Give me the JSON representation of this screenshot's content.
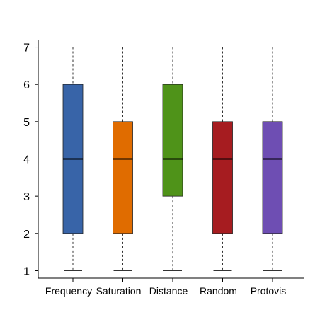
{
  "chart_data": {
    "type": "box",
    "title": "",
    "xlabel": "",
    "ylabel": "",
    "ylim": [
      0.8,
      7.2
    ],
    "yticks": [
      1,
      2,
      3,
      4,
      5,
      6,
      7
    ],
    "grid": false,
    "categories": [
      "Frequency",
      "Saturation",
      "Distance",
      "Random",
      "Protovis"
    ],
    "series": [
      {
        "min": 1,
        "q1": 2,
        "median": 4,
        "q3": 6,
        "max": 7,
        "color": "#3864a8"
      },
      {
        "min": 1,
        "q1": 2,
        "median": 4,
        "q3": 5,
        "max": 7,
        "color": "#e06c00"
      },
      {
        "min": 1,
        "q1": 3,
        "median": 4,
        "q3": 6,
        "max": 7,
        "color": "#4f9319"
      },
      {
        "min": 1,
        "q1": 2,
        "median": 4,
        "q3": 5,
        "max": 7,
        "color": "#a61c20"
      },
      {
        "min": 1,
        "q1": 2,
        "median": 4,
        "q3": 5,
        "max": 7,
        "color": "#6e4eb3"
      }
    ],
    "median_color": "#000000",
    "whisker_style": "dashed"
  }
}
